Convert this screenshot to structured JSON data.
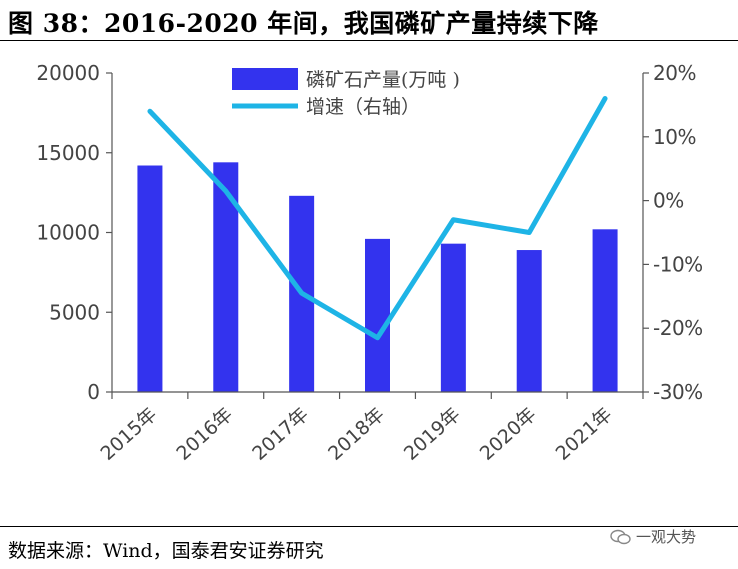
{
  "title": "图 38：2016-2020 年间，我国磷矿产量持续下降",
  "source": "数据来源：Wind，国泰君安证券研究",
  "watermark": "一观大势",
  "colors": {
    "bar": "#3333ee",
    "line": "#1eb4e6",
    "axis": "#555555",
    "text": "#444444"
  },
  "chart_data": {
    "type": "bar+line",
    "categories": [
      "2015年",
      "2016年",
      "2017年",
      "2018年",
      "2019年",
      "2020年",
      "2021年"
    ],
    "series": [
      {
        "name": "磷矿石产量(万吨 )",
        "type": "bar",
        "axis": "left",
        "values": [
          14200,
          14400,
          12300,
          9600,
          9300,
          8900,
          10200
        ]
      },
      {
        "name": "增速（右轴）",
        "type": "line",
        "axis": "right",
        "values": [
          14,
          1.5,
          -14.5,
          -21.5,
          -3,
          -5,
          16
        ]
      }
    ],
    "y_left": {
      "lim": [
        0,
        20000
      ],
      "ticks": [
        "0",
        "5000",
        "10000",
        "15000",
        "20000"
      ]
    },
    "y_right": {
      "lim": [
        -30,
        20
      ],
      "ticks": [
        "-30%",
        "-20%",
        "-10%",
        "0%",
        "10%",
        "20%"
      ]
    },
    "legend_position": "top-center",
    "grid": false
  }
}
